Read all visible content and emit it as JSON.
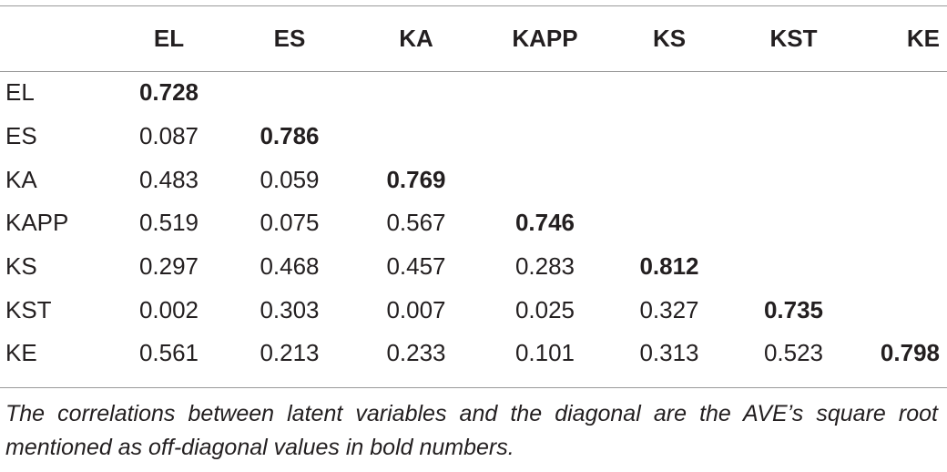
{
  "table": {
    "columns": [
      "EL",
      "ES",
      "KA",
      "KAPP",
      "KS",
      "KST",
      "KE"
    ],
    "rows": [
      {
        "label": "EL",
        "values": [
          "0.728",
          "",
          "",
          "",
          "",
          "",
          ""
        ]
      },
      {
        "label": "ES",
        "values": [
          "0.087",
          "0.786",
          "",
          "",
          "",
          "",
          ""
        ]
      },
      {
        "label": "KA",
        "values": [
          "0.483",
          "0.059",
          "0.769",
          "",
          "",
          "",
          ""
        ]
      },
      {
        "label": "KAPP",
        "values": [
          "0.519",
          "0.075",
          "0.567",
          "0.746",
          "",
          "",
          ""
        ]
      },
      {
        "label": "KS",
        "values": [
          "0.297",
          "0.468",
          "0.457",
          "0.283",
          "0.812",
          "",
          ""
        ]
      },
      {
        "label": "KST",
        "values": [
          "0.002",
          "0.303",
          "0.007",
          "0.025",
          "0.327",
          "0.735",
          ""
        ]
      },
      {
        "label": "KE",
        "values": [
          "0.561",
          "0.213",
          "0.233",
          "0.101",
          "0.313",
          "0.523",
          "0.798"
        ]
      }
    ]
  },
  "footnote": "The correlations between latent variables and the diagonal are the AVE’s square root mentioned as off-diagonal values in bold numbers."
}
